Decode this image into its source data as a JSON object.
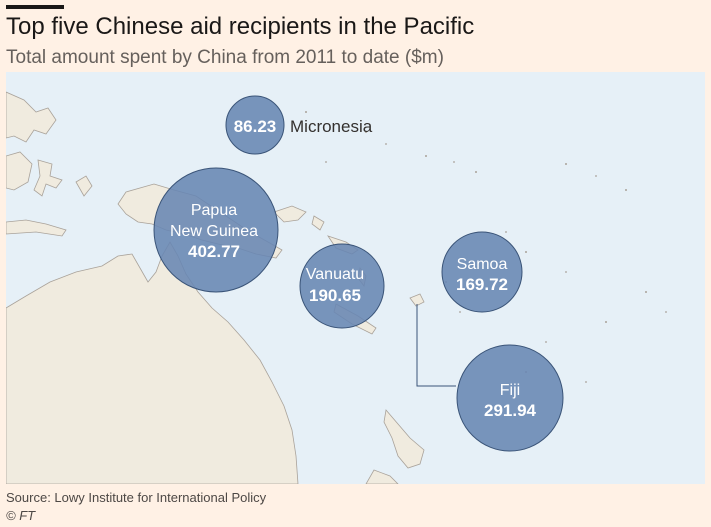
{
  "header": {
    "title": "Top five Chinese aid recipients in the Pacific",
    "subtitle": "Total amount spent by China from 2011 to date ($m)"
  },
  "footer": {
    "source": "Source: Lowy Institute for International Policy",
    "credit": "© FT"
  },
  "colors": {
    "background": "#fff1e5",
    "ocean": "#e6f0f7",
    "land": "#f0ebdf",
    "bubble": "#6886b3",
    "bubble_stroke": "#3a5478"
  },
  "recipients": [
    {
      "name": "Micronesia",
      "value": 86.23,
      "value_label": "86.23"
    },
    {
      "name": "Papua New Guinea",
      "value": 402.77,
      "value_label": "402.77"
    },
    {
      "name": "Vanuatu",
      "value": 190.65,
      "value_label": "190.65"
    },
    {
      "name": "Samoa",
      "value": 169.72,
      "value_label": "169.72"
    },
    {
      "name": "Fiji",
      "value": 291.94,
      "value_label": "291.94"
    }
  ],
  "labels": {
    "micronesia": "Micronesia",
    "png_line1": "Papua",
    "png_line2": "New Guinea",
    "vanuatu": "Vanuatu",
    "samoa": "Samoa",
    "fiji": "Fiji"
  }
}
